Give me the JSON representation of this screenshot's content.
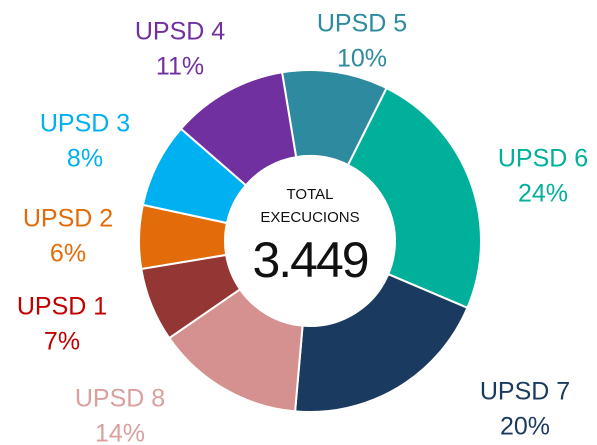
{
  "chart_data": {
    "type": "donut",
    "categories": [
      "UPSD 5",
      "UPSD 6",
      "UPSD 7",
      "UPSD 8",
      "UPSD 1",
      "UPSD 2",
      "UPSD 3",
      "UPSD 4"
    ],
    "values": [
      10,
      24,
      20,
      14,
      7,
      6,
      8,
      11
    ],
    "value_labels": [
      "10%",
      "24%",
      "20%",
      "14%",
      "7%",
      "6%",
      "8%",
      "11%"
    ],
    "colors": [
      "#2e8a9e",
      "#00b09a",
      "#1b3a5f",
      "#d4918f",
      "#943634",
      "#e36c0a",
      "#00b0f0",
      "#7030a0"
    ],
    "label_colors": [
      "#2e8a9e",
      "#00b09a",
      "#1b3a5f",
      "#d9a09e",
      "#c00000",
      "#e36c0a",
      "#00b0f0",
      "#7030a0"
    ],
    "center_title": [
      "TOTAL",
      "EXECUCIONS"
    ],
    "total": {
      "value": 3449,
      "label": "3.449"
    }
  }
}
